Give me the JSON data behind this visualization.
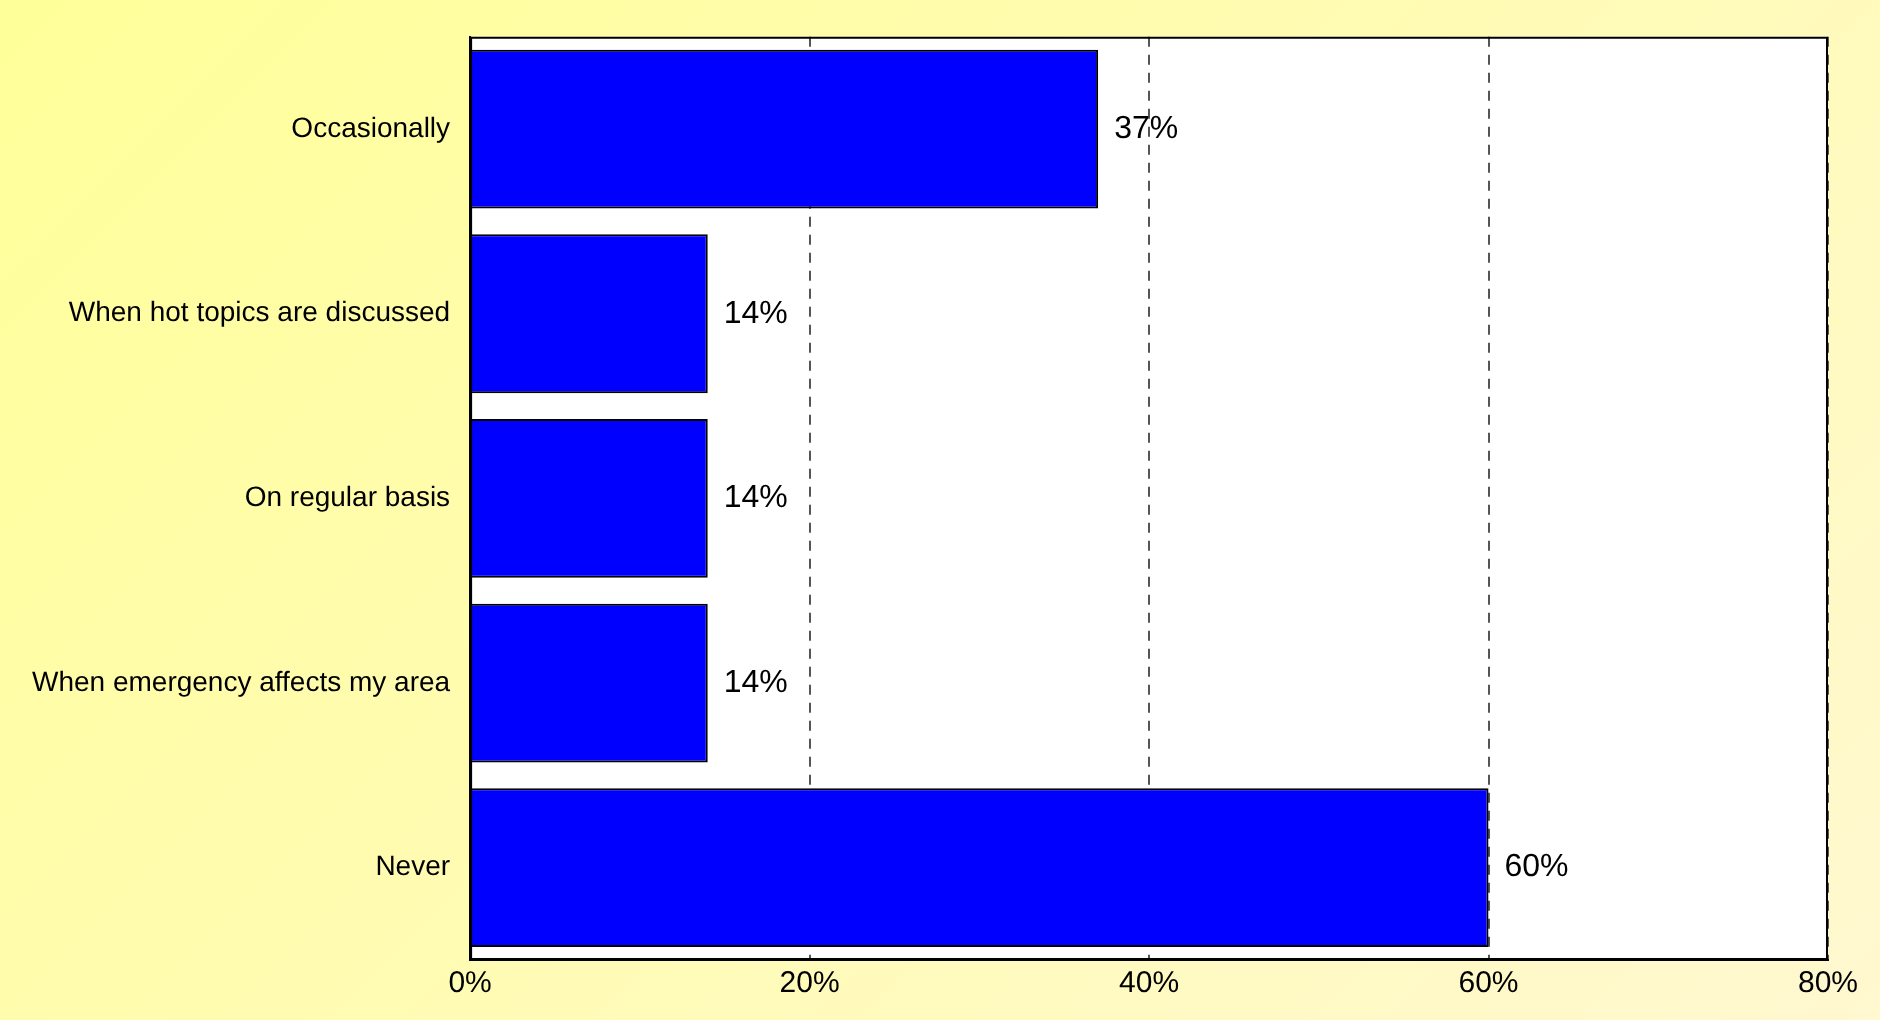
{
  "chart_data": {
    "type": "bar",
    "orientation": "horizontal",
    "categories": [
      "Occasionally",
      "When hot topics are discussed",
      "On regular basis",
      "When emergency affects my area",
      "Never"
    ],
    "values": [
      37,
      14,
      14,
      14,
      60
    ],
    "color": "#0000ff",
    "value_labels": [
      "37%",
      "14%",
      "14%",
      "14%",
      "60%"
    ],
    "xlim": [
      0,
      80
    ],
    "xticks": [
      {
        "value": 0,
        "label": "0%"
      },
      {
        "value": 20,
        "label": "20%"
      },
      {
        "value": 40,
        "label": "40%"
      },
      {
        "value": 60,
        "label": "60%"
      },
      {
        "value": 80,
        "label": "80%"
      }
    ],
    "grid": "x",
    "legend": false
  }
}
